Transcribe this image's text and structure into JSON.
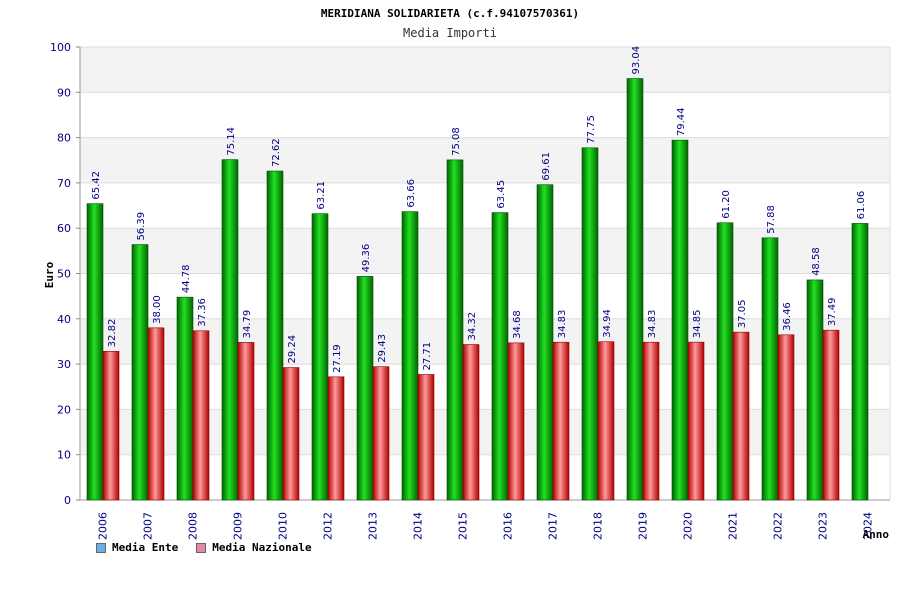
{
  "chart_data": {
    "type": "bar",
    "title": "MERIDIANA SOLIDARIETA (c.f.94107570361)",
    "subtitle": "Media Importi",
    "ylabel": "Euro",
    "xlabel": "Anno",
    "ylim": [
      0,
      100
    ],
    "yticks": [
      0,
      10,
      20,
      30,
      40,
      50,
      60,
      70,
      80,
      90,
      100
    ],
    "grid": true,
    "legend_position": "bottom-left",
    "categories": [
      "2006",
      "2007",
      "2008",
      "2009",
      "2010",
      "2012",
      "2013",
      "2014",
      "2015",
      "2016",
      "2017",
      "2018",
      "2019",
      "2020",
      "2021",
      "2022",
      "2023",
      "2024"
    ],
    "series": [
      {
        "name": "Media Ente",
        "color": "#00b000",
        "legend_color": "#6aaee8",
        "values": [
          65.42,
          56.39,
          44.78,
          75.14,
          72.62,
          63.21,
          49.36,
          63.66,
          75.08,
          63.45,
          69.61,
          77.75,
          93.04,
          79.44,
          61.2,
          57.88,
          48.58,
          61.06
        ],
        "labels": [
          "65.42",
          "56.39",
          "44.78",
          "75.14",
          "72.62",
          "63.21",
          "49.36",
          "63.66",
          "75.08",
          "63.45",
          "69.61",
          "77.75",
          "93.04",
          "79.44",
          "61.20",
          "57.88",
          "48.58",
          "61.06"
        ]
      },
      {
        "name": "Media Nazionale",
        "color": "#e00000",
        "legend_color": "#e08aa8",
        "values": [
          32.82,
          38.0,
          37.36,
          34.79,
          29.24,
          27.19,
          29.43,
          27.71,
          34.32,
          34.68,
          34.83,
          34.94,
          34.83,
          34.85,
          37.05,
          36.46,
          37.49,
          null
        ],
        "labels": [
          "32.82",
          "38.00",
          "37.36",
          "34.79",
          "29.24",
          "27.19",
          "29.43",
          "27.71",
          "34.32",
          "34.68",
          "34.83",
          "34.94",
          "34.83",
          "34.85",
          "37.05",
          "36.46",
          "37.49",
          ""
        ]
      }
    ]
  }
}
